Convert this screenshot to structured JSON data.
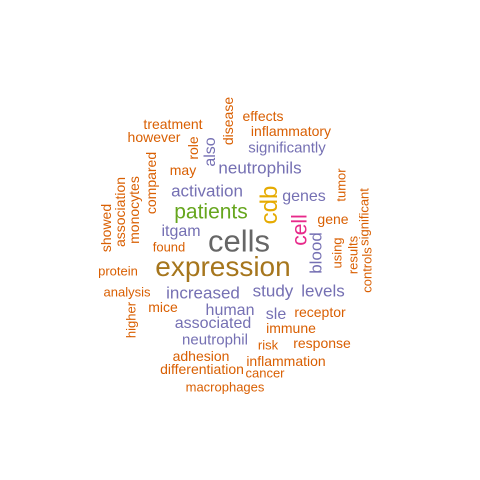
{
  "palette": {
    "orange": "#d95f02",
    "purple": "#7570b3",
    "green": "#66a61e",
    "gold": "#e6ab02",
    "pink": "#e7298a",
    "brown": "#a6761d",
    "gray": "#666666"
  },
  "words": {
    "cells": "cells",
    "expression": "expression",
    "patients": "patients",
    "cdb": "cdb",
    "cell": "cell",
    "activation": "activation",
    "neutrophils": "neutrophils",
    "increased": "increased",
    "study": "study",
    "levels": "levels",
    "genes": "genes",
    "blood": "blood",
    "itgam": "itgam",
    "associated": "associated",
    "human": "human",
    "sle": "sle",
    "neutrophil": "neutrophil",
    "significantly": "significantly",
    "inflammatory": "inflammatory",
    "effects": "effects",
    "treatment": "treatment",
    "however": "however",
    "disease": "disease",
    "role": "role",
    "also": "also",
    "may": "may",
    "compared": "compared",
    "monocytes": "monocytes",
    "association": "association",
    "showed": "showed",
    "found": "found",
    "protein": "protein",
    "analysis": "analysis",
    "mice": "mice",
    "higher": "higher",
    "gene": "gene",
    "tumor": "tumor",
    "significant": "significant",
    "results": "results",
    "controls": "controls",
    "using": "using",
    "receptor": "receptor",
    "immune": "immune",
    "risk": "risk",
    "response": "response",
    "adhesion": "adhesion",
    "inflammation": "inflammation",
    "differentiation": "differentiation",
    "cancer": "cancer",
    "macrophages": "macrophages"
  }
}
